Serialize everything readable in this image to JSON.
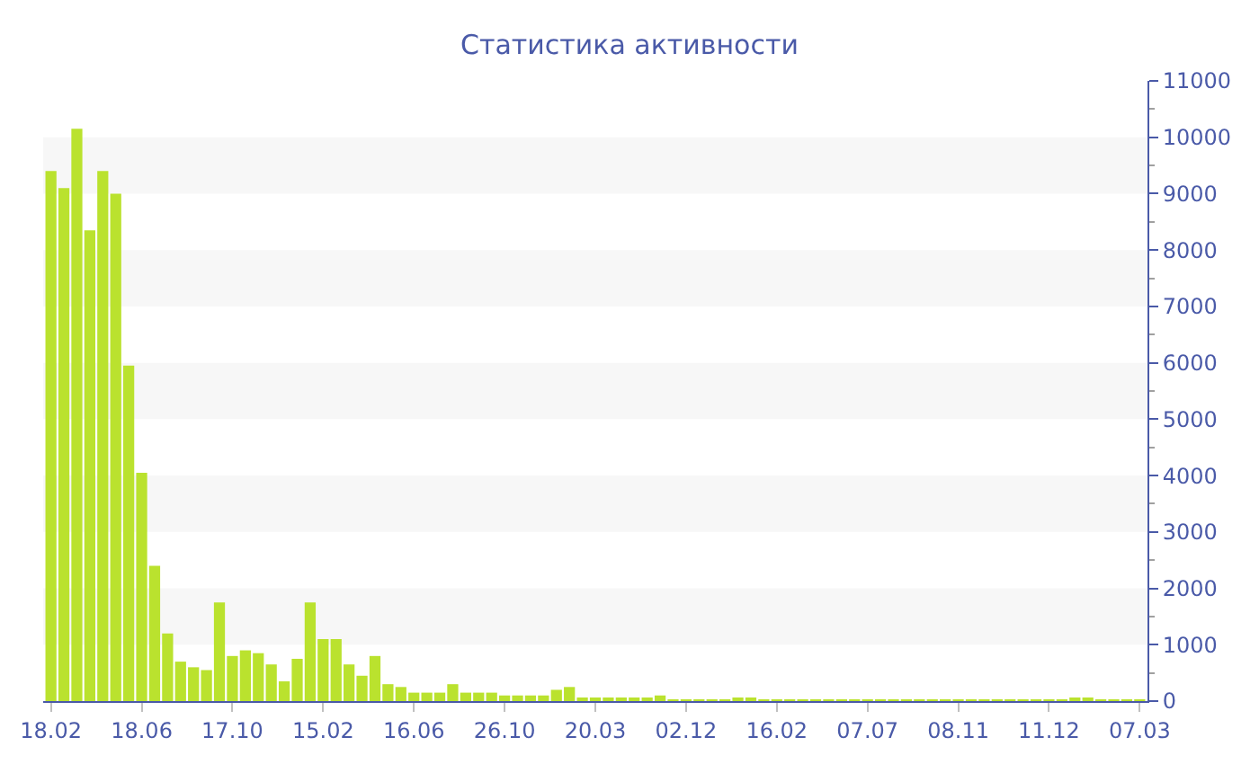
{
  "chart_data": {
    "type": "bar",
    "title": "Статистика активности",
    "categories": [
      "18.02",
      null,
      null,
      null,
      null,
      null,
      null,
      "18.06",
      null,
      null,
      null,
      null,
      null,
      null,
      "17.10",
      null,
      null,
      null,
      null,
      null,
      null,
      "15.02",
      null,
      null,
      null,
      null,
      null,
      null,
      "16.06",
      null,
      null,
      null,
      null,
      null,
      null,
      "26.10",
      null,
      null,
      null,
      null,
      null,
      null,
      "20.03",
      null,
      null,
      null,
      null,
      null,
      null,
      "02.12",
      null,
      null,
      null,
      null,
      null,
      null,
      "16.02",
      null,
      null,
      null,
      null,
      null,
      null,
      "07.07",
      null,
      null,
      null,
      null,
      null,
      null,
      "08.11",
      null,
      null,
      null,
      null,
      null,
      null,
      "11.12",
      null,
      null,
      null,
      null,
      null,
      null,
      "07.03"
    ],
    "values": [
      9400,
      9100,
      10150,
      8350,
      9400,
      9000,
      5950,
      4050,
      2400,
      1200,
      700,
      600,
      550,
      1750,
      800,
      900,
      850,
      650,
      350,
      750,
      1750,
      1100,
      1100,
      650,
      450,
      800,
      300,
      250,
      150,
      150,
      150,
      300,
      150,
      150,
      150,
      100,
      100,
      100,
      100,
      200,
      250,
      50,
      50,
      50,
      50,
      50,
      50,
      100,
      25,
      25,
      25,
      25,
      25,
      40,
      40,
      25,
      25,
      25,
      25,
      25,
      25,
      25,
      25,
      25,
      25,
      25,
      25,
      25,
      25,
      25,
      25,
      25,
      25,
      25,
      25,
      25,
      25,
      25,
      25,
      40,
      40,
      25,
      25,
      25,
      25
    ],
    "color": "#bae22e",
    "ylim": [
      0,
      11000
    ],
    "yticks": [
      0,
      1000,
      2000,
      3000,
      4000,
      5000,
      6000,
      7000,
      8000,
      9000,
      10000,
      11000
    ],
    "bands": [
      {
        "axis": "y",
        "from": 1000,
        "to": 2000,
        "color": "#f7f7f7"
      },
      {
        "axis": "y",
        "from": 3000,
        "to": 4000,
        "color": "#f7f7f7"
      },
      {
        "axis": "y",
        "from": 5000,
        "to": 6000,
        "color": "#f7f7f7"
      },
      {
        "axis": "y",
        "from": 7000,
        "to": 8000,
        "color": "#f7f7f7"
      },
      {
        "axis": "y",
        "from": 9000,
        "to": 10000,
        "color": "#f7f7f7"
      }
    ],
    "grid": false,
    "legend": false
  }
}
